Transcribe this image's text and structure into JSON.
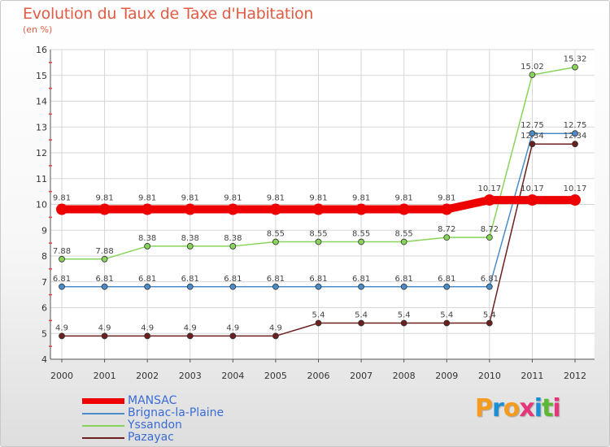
{
  "header": {
    "title": "Evolution du Taux de Taxe d'Habitation",
    "subtitle": "(en %)"
  },
  "brand": {
    "name": "Proxiti",
    "letter_colors": [
      "#f39c1f",
      "#1a8fd6",
      "#f39c1f",
      "#e6367a",
      "#1a8fd6",
      "#5cb833",
      "#e6367a"
    ]
  },
  "chart_data": {
    "type": "line",
    "title": "Evolution du Taux de Taxe d'Habitation",
    "ylabel": "(en %)",
    "xlabel": "",
    "categories": [
      "2000",
      "2001",
      "2002",
      "2003",
      "2004",
      "2005",
      "2006",
      "2007",
      "2008",
      "2009",
      "2010",
      "2011",
      "2012"
    ],
    "ylim": [
      4,
      16
    ],
    "yticks": [
      4,
      5,
      6,
      7,
      8,
      9,
      10,
      11,
      12,
      13,
      14,
      15,
      16
    ],
    "grid": true,
    "legend_position": "bottom-left",
    "series": [
      {
        "name": "MANSAC",
        "color": "#ee0000",
        "emphasis": true,
        "values": [
          9.81,
          9.81,
          9.81,
          9.81,
          9.81,
          9.81,
          9.81,
          9.81,
          9.81,
          9.81,
          10.17,
          10.17,
          10.17
        ],
        "labels": [
          "9.81",
          "9.81",
          "9.81",
          "9.81",
          "9.81",
          "9.81",
          "9.81",
          "9.81",
          "9.81",
          "9.81",
          "10.17",
          "10.17",
          "10.17"
        ]
      },
      {
        "name": "Brignac-la-Plaine",
        "color": "#4a8cc9",
        "emphasis": false,
        "values": [
          6.81,
          6.81,
          6.81,
          6.81,
          6.81,
          6.81,
          6.81,
          6.81,
          6.81,
          6.81,
          6.81,
          12.75,
          12.75
        ],
        "labels": [
          "6.81",
          "6.81",
          "6.81",
          "6.81",
          "6.81",
          "6.81",
          "6.81",
          "6.81",
          "6.81",
          "6.81",
          "6.81",
          "12.75",
          "12.75"
        ]
      },
      {
        "name": "Yssandon",
        "color": "#88d45a",
        "emphasis": false,
        "values": [
          7.88,
          7.88,
          8.38,
          8.38,
          8.38,
          8.55,
          8.55,
          8.55,
          8.55,
          8.72,
          8.72,
          15.02,
          15.32
        ],
        "labels": [
          "7.88",
          "7.88",
          "8.38",
          "8.38",
          "8.38",
          "8.55",
          "8.55",
          "8.55",
          "8.55",
          "8.72",
          "8.72",
          "15.02",
          "15.32"
        ]
      },
      {
        "name": "Pazayac",
        "color": "#6b1f1f",
        "emphasis": false,
        "values": [
          4.9,
          4.9,
          4.9,
          4.9,
          4.9,
          4.9,
          5.4,
          5.4,
          5.4,
          5.4,
          5.4,
          12.34,
          12.34
        ],
        "labels": [
          "4.9",
          "4.9",
          "4.9",
          "4.9",
          "4.9",
          "4.9",
          "5.4",
          "5.4",
          "5.4",
          "5.4",
          "5.4",
          "12.34",
          "12.34"
        ]
      }
    ]
  }
}
